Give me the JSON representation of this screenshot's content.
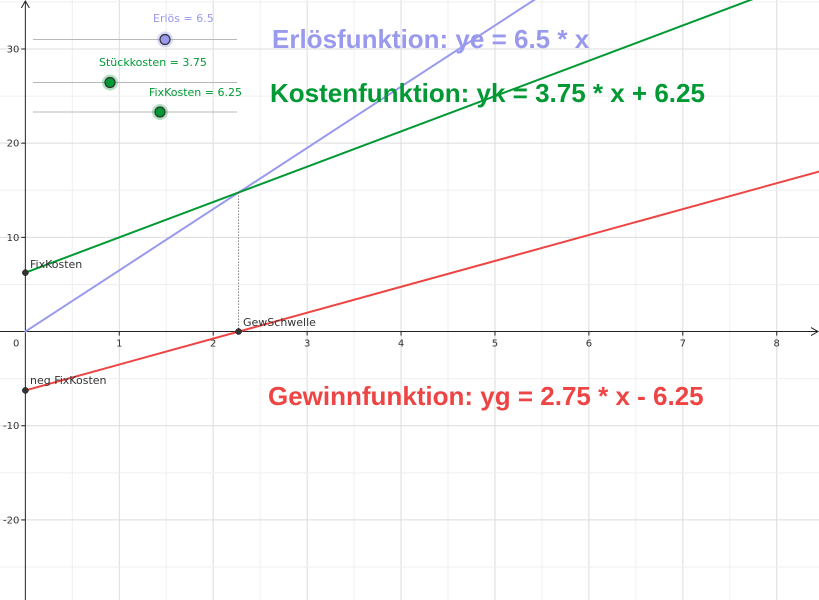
{
  "functions": {
    "erloes": {
      "text": "Erlösfunktion: ye = 6.5 * x",
      "color": "#9999ee",
      "slope": 6.5,
      "intercept": 0
    },
    "kosten": {
      "text": "Kostenfunktion: yk = 3.75 * x + 6.25",
      "color": "#009933",
      "slope": 3.75,
      "intercept": 6.25
    },
    "gewinn": {
      "text": "Gewinnfunktion: yg = 2.75 * x - 6.25",
      "color": "#ee4444",
      "slope": 2.75,
      "intercept": -6.25
    }
  },
  "sliders": [
    {
      "label": "Erlös = 6.5",
      "value": 6.5,
      "min": 0,
      "max": 10,
      "color": "#9999ee",
      "key": "erloes"
    },
    {
      "label": "Stückkosten = 3.75",
      "value": 3.75,
      "min": 0,
      "max": 10,
      "color": "#009933",
      "key": "stueckkosten"
    },
    {
      "label": "FixKosten = 6.25",
      "value": 6.25,
      "min": 0,
      "max": 15,
      "color": "#009933",
      "key": "fixkosten"
    }
  ],
  "points": [
    {
      "name": "FixKosten",
      "label": "FixKosten",
      "x": 0,
      "y": 6.25
    },
    {
      "name": "neg FixKosten",
      "label": "neg FixKosten",
      "x": 0,
      "y": -6.25
    },
    {
      "name": "GewSchwelle",
      "label": "GewSchwelle",
      "x": 2.27,
      "y": 0
    }
  ],
  "axes": {
    "x_ticks": [
      "1",
      "2",
      "3",
      "4",
      "5",
      "6",
      "7",
      "8"
    ],
    "y_ticks": [
      "30",
      "20",
      "10",
      "-10",
      "-20"
    ],
    "origin_label": "0",
    "grid": true
  },
  "chart_data": {
    "type": "line",
    "xlim": [
      -0.27,
      8.45
    ],
    "ylim": [
      -28.5,
      35.2
    ],
    "series": [
      {
        "name": "ye",
        "slope": 6.5,
        "intercept": 0
      },
      {
        "name": "yk",
        "slope": 3.75,
        "intercept": 6.25
      },
      {
        "name": "yg",
        "slope": 2.75,
        "intercept": -6.25
      }
    ]
  }
}
